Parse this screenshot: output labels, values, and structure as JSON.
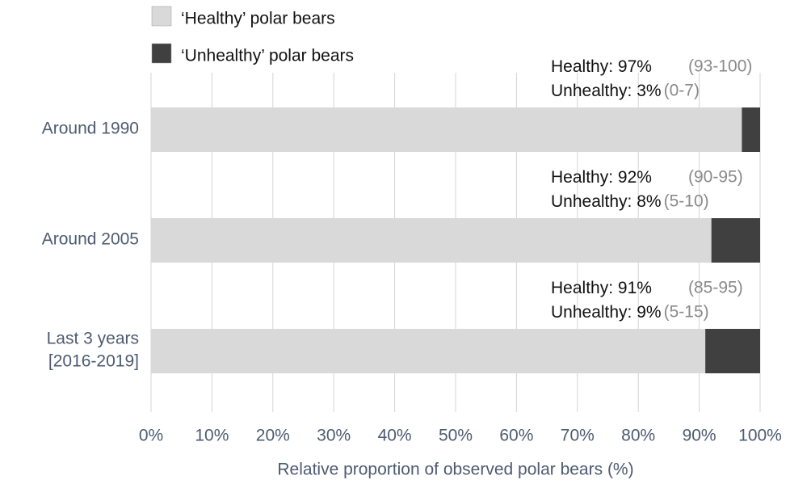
{
  "chart_data": {
    "type": "stacked_barh",
    "categories": [
      [
        "Around 1990"
      ],
      [
        "Around 2005"
      ],
      [
        "Last 3 years",
        "[2016-2019]"
      ]
    ],
    "series": [
      {
        "name": "‘Healthy’ polar bears",
        "color": "#d9d9d9",
        "label": "Healthy:",
        "values": [
          97,
          92,
          91
        ],
        "value_labels": [
          "97%",
          "92%",
          "91%"
        ],
        "interval_labels": [
          "(93-100)",
          "(90-95)",
          "(85-95)"
        ]
      },
      {
        "name": "‘Unhealthy’ polar bears",
        "color": "#404040",
        "label": "Unhealthy:",
        "values": [
          3,
          8,
          9
        ],
        "value_labels": [
          "3%",
          "8%",
          "9%"
        ],
        "interval_labels": [
          "(0-7)",
          "(5-10)",
          "(5-15)"
        ]
      }
    ],
    "xlim": [
      0,
      100
    ],
    "xticks": [
      {
        "value": 0,
        "label": "0%"
      },
      {
        "value": 10,
        "label": "10%"
      },
      {
        "value": 20,
        "label": "20%"
      },
      {
        "value": 30,
        "label": "30%"
      },
      {
        "value": 40,
        "label": "40%"
      },
      {
        "value": 50,
        "label": "50%"
      },
      {
        "value": 60,
        "label": "60%"
      },
      {
        "value": 70,
        "label": "70%"
      },
      {
        "value": 80,
        "label": "80%"
      },
      {
        "value": 90,
        "label": "90%"
      },
      {
        "value": 100,
        "label": "100%"
      }
    ],
    "xlabel": "Relative proportion of observed polar bears (%)",
    "grid": true,
    "legend": "top-left"
  }
}
